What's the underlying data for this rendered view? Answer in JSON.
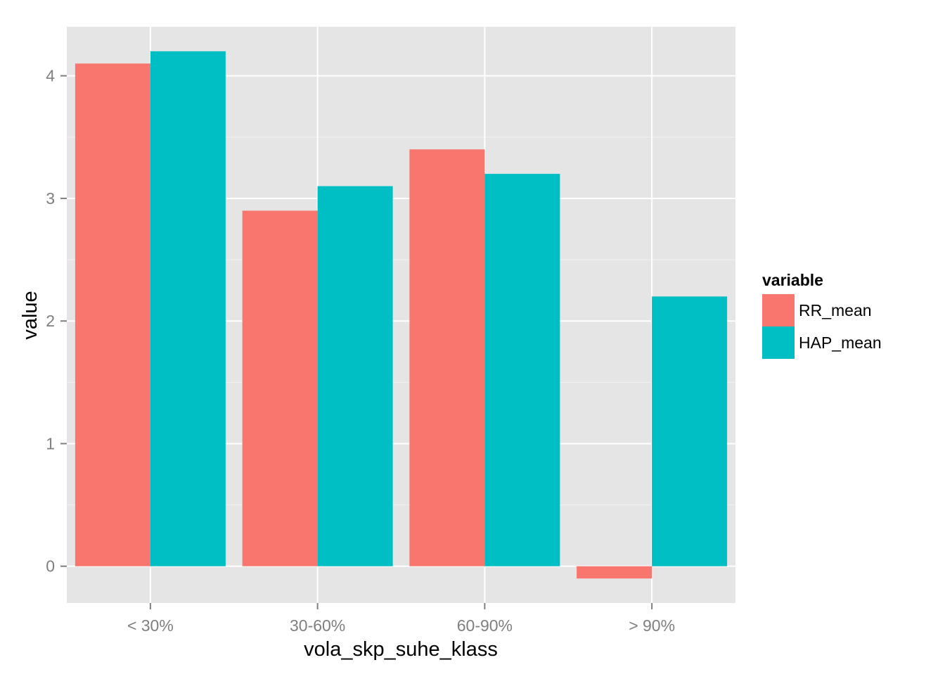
{
  "chart_data": {
    "type": "bar",
    "categories": [
      "< 30%",
      "30-60%",
      "60-90%",
      "> 90%"
    ],
    "series": [
      {
        "name": "RR_mean",
        "values": [
          4.1,
          2.9,
          3.4,
          -0.1
        ],
        "color": "#F8766D"
      },
      {
        "name": "HAP_mean",
        "values": [
          4.2,
          3.1,
          3.2,
          2.2
        ],
        "color": "#00BFC4"
      }
    ],
    "xlabel": "vola_skp_suhe_klass",
    "ylabel": "value",
    "ylim": [
      -0.3,
      4.4
    ],
    "yticks": [
      0,
      1,
      2,
      3,
      4
    ],
    "legend": {
      "title": "variable",
      "position": "right"
    },
    "grid": true,
    "panel_background": "#E5E5E5",
    "grid_color": "#FFFFFF"
  }
}
